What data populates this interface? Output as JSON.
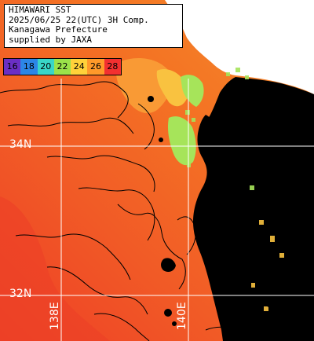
{
  "header": {
    "line1": "HIMAWARI SST",
    "line2": "2025/06/25 22(UTC) 3H Comp.",
    "line3": "Kanagawa Prefecture",
    "line4": "supplied by JAXA"
  },
  "legend": {
    "items": [
      {
        "label": "16",
        "color": "#6a2fc4"
      },
      {
        "label": "18",
        "color": "#2c86e6"
      },
      {
        "label": "20",
        "color": "#39d6c7"
      },
      {
        "label": "22",
        "color": "#9be24a"
      },
      {
        "label": "24",
        "color": "#ffd23a"
      },
      {
        "label": "26",
        "color": "#ff9a2a"
      },
      {
        "label": "28",
        "color": "#f23030"
      }
    ]
  },
  "grid": {
    "lat_labels": [
      "34N",
      "32N"
    ],
    "lon_labels": [
      "138E",
      "140E"
    ]
  },
  "colors": {
    "land": "#000000",
    "no_data": "#ffffff",
    "sst_warm": "#f36d22",
    "sst_hot": "#ef4a2a",
    "sst_mild": "#f99a35",
    "sst_cool": "#f9c240",
    "sst_cold": "#a6e45a",
    "grid_line": "#ffffff",
    "contour": "#000000"
  }
}
